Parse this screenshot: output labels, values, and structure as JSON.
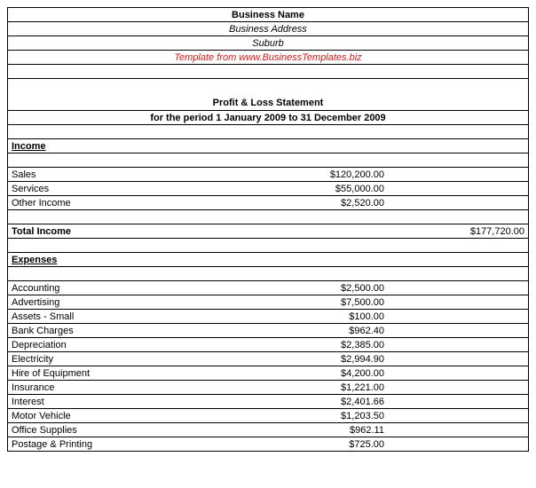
{
  "header": {
    "company_name": "Business Name",
    "address": "Business Address",
    "suburb": "Suburb",
    "source": "Template from www.BusinessTemplates.biz",
    "source_color": "#d11a1a"
  },
  "statement": {
    "title": "Profit & Loss Statement",
    "period": "for the period 1 January 2009 to 31 December 2009"
  },
  "income": {
    "heading": "Income",
    "items": [
      {
        "label": "Sales",
        "amount": "$120,200.00"
      },
      {
        "label": "Services",
        "amount": "$55,000.00"
      },
      {
        "label": "Other Income",
        "amount": "$2,520.00"
      }
    ],
    "total_label": "Total Income",
    "total_amount": "$177,720.00"
  },
  "expenses": {
    "heading": "Expenses",
    "items": [
      {
        "label": "Accounting",
        "amount": "$2,500.00"
      },
      {
        "label": "Advertising",
        "amount": "$7,500.00"
      },
      {
        "label": "Assets - Small",
        "amount": "$100.00"
      },
      {
        "label": "Bank Charges",
        "amount": "$962.40"
      },
      {
        "label": "Depreciation",
        "amount": "$2,385.00"
      },
      {
        "label": "Electricity",
        "amount": "$2,994.90"
      },
      {
        "label": "Hire of Equipment",
        "amount": "$4,200.00"
      },
      {
        "label": "Insurance",
        "amount": "$1,221.00"
      },
      {
        "label": "Interest",
        "amount": "$2,401.66"
      },
      {
        "label": "Motor Vehicle",
        "amount": "$1,203.50"
      },
      {
        "label": "Office Supplies",
        "amount": "$962.11"
      },
      {
        "label": "Postage & Printing",
        "amount": "$725.00"
      }
    ]
  },
  "layout": {
    "col_widths_pct": [
      41,
      32,
      27
    ],
    "font_family": "Arial",
    "title_fontsize": 18,
    "section_fontsize": 16,
    "row_fontsize": 11,
    "border_color": "#000000",
    "background_color": "#ffffff"
  }
}
